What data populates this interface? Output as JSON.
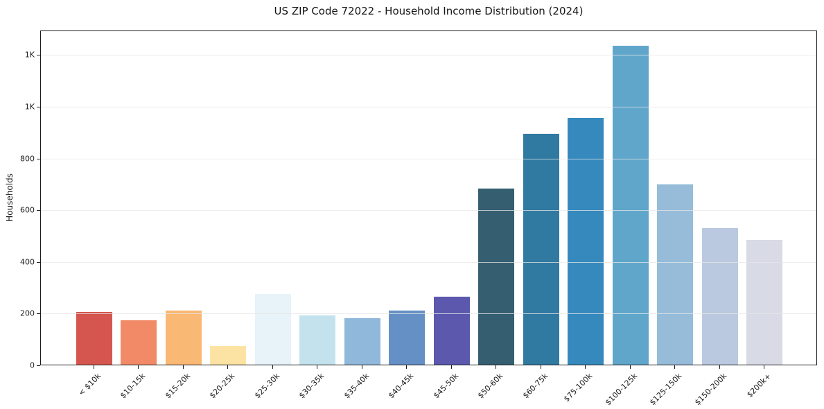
{
  "chart_data": {
    "type": "bar",
    "title": "US ZIP Code 72022 - Household Income Distribution (2024)",
    "xlabel": "",
    "ylabel": "Households",
    "categories": [
      "< $10k",
      "$10-15k",
      "$15-20k",
      "$20-25k",
      "$25-30k",
      "$30-35k",
      "$35-40k",
      "$40-45k",
      "$45-50k",
      "$50-60k",
      "$60-75k",
      "$75-100k",
      "$100-125k",
      "$125-150k",
      "$150-200k",
      "$200k+"
    ],
    "values": [
      205,
      172,
      210,
      73,
      273,
      190,
      180,
      210,
      262,
      681,
      892,
      955,
      1233,
      697,
      528,
      482
    ],
    "bar_colors": [
      "#d5564e",
      "#f28a68",
      "#f9b873",
      "#fde3a3",
      "#e7f3f9",
      "#c3e2ee",
      "#90b8db",
      "#6590c5",
      "#5b58ae",
      "#355e70",
      "#3079a1",
      "#3589bd",
      "#60a6cb",
      "#96bcd9",
      "#bac9e0",
      "#d8dae6"
    ],
    "ylim": [
      0,
      1295
    ],
    "yticks": [
      {
        "value": 0,
        "label": "0"
      },
      {
        "value": 200,
        "label": "200"
      },
      {
        "value": 400,
        "label": "400"
      },
      {
        "value": 600,
        "label": "600"
      },
      {
        "value": 800,
        "label": "800"
      },
      {
        "value": 1000,
        "label": "1K"
      },
      {
        "value": 1200,
        "label": "1K"
      }
    ],
    "grid": "horizontal",
    "legend_position": "none"
  },
  "colors": {
    "background": "#ffffff",
    "spine": "#1a1a1a",
    "gridline": "#e7e7e7",
    "text": "#1a1a1a"
  }
}
